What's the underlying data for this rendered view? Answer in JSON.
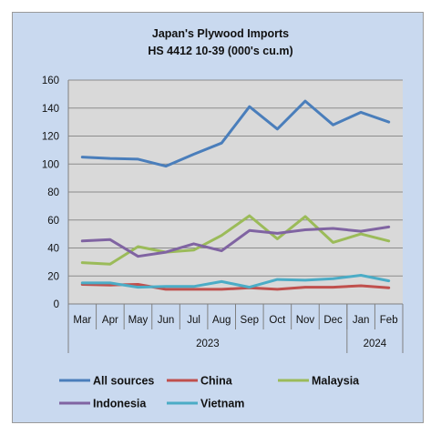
{
  "chart_data": {
    "type": "line",
    "title": "Japan's Plywood Imports",
    "subtitle": "HS 4412 10-39  (000's cu.m)",
    "categories": [
      "Mar",
      "Apr",
      "May",
      "Jun",
      "Jul",
      "Aug",
      "Sep",
      "Oct",
      "Nov",
      "Dec",
      "Jan",
      "Feb"
    ],
    "year_groups": [
      {
        "label": "2023",
        "start": 0,
        "end": 9
      },
      {
        "label": "2024",
        "start": 10,
        "end": 11
      }
    ],
    "ylim": [
      0,
      160
    ],
    "yticks": [
      0,
      20,
      40,
      60,
      80,
      100,
      120,
      140,
      160
    ],
    "grid": true,
    "legend_position": "bottom",
    "series": [
      {
        "name": "All sources",
        "color": "#4a7ebb",
        "values": [
          105,
          104,
          103.5,
          98.5,
          107,
          115,
          141,
          125,
          145,
          128,
          137,
          130
        ]
      },
      {
        "name": "China",
        "color": "#c0504d",
        "values": [
          14,
          13.5,
          14,
          10.5,
          10.5,
          10.5,
          11.5,
          10.5,
          12,
          12,
          13,
          11.5
        ]
      },
      {
        "name": "Malaysia",
        "color": "#9bbb59",
        "values": [
          29.5,
          28.5,
          41,
          37,
          38.5,
          49,
          63,
          46.5,
          62.5,
          44,
          50,
          45
        ]
      },
      {
        "name": "Indonesia",
        "color": "#8064a2",
        "values": [
          45,
          46,
          34,
          37,
          43,
          38,
          52.5,
          50.5,
          53,
          54,
          52,
          55
        ]
      },
      {
        "name": "Vietnam",
        "color": "#4bacc6",
        "values": [
          15,
          15,
          12,
          12.5,
          12.5,
          16,
          12,
          17.5,
          17,
          18,
          20.5,
          16.5
        ]
      }
    ]
  }
}
